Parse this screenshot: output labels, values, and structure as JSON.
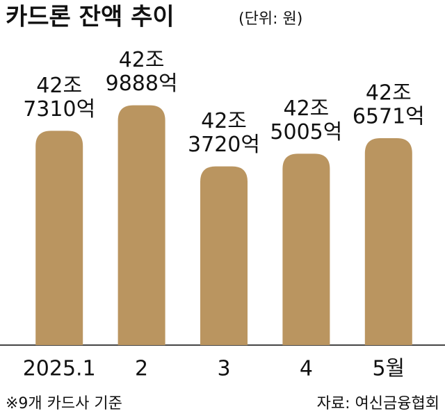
{
  "chart_data": {
    "type": "bar",
    "title": "카드론 잔액 추이",
    "subtitle": "(단위: 원)",
    "categories": [
      "2025.1",
      "2",
      "3",
      "4",
      "5월"
    ],
    "values": [
      427310,
      429888,
      423720,
      425005,
      426571
    ],
    "value_labels": [
      [
        "42조",
        "7310억"
      ],
      [
        "42조",
        "9888억"
      ],
      [
        "42조",
        "3720억"
      ],
      [
        "42조",
        "5005억"
      ],
      [
        "42조",
        "6571억"
      ]
    ],
    "color": "#ba9560",
    "ylim": [
      405700,
      431400
    ],
    "note": "※9개 카드사 기준",
    "source": "자료: 여신금융협회"
  }
}
